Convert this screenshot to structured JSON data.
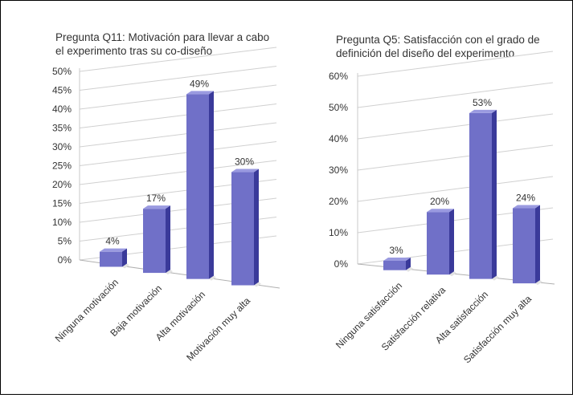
{
  "chart_data": [
    {
      "type": "bar",
      "title": "Pregunta Q11: Motivación para llevar a cabo el experimento tras su co-diseño",
      "title_lines": [
        "Pregunta Q11: Motivación para llevar a cabo",
        "el experimento tras su co-diseño"
      ],
      "categories": [
        "Ninguna motivación",
        "Baja motivación",
        "Alta motivación",
        "Motivación muy alta"
      ],
      "values": [
        4,
        17,
        49,
        30
      ],
      "value_labels": [
        "4%",
        "17%",
        "49%",
        "30%"
      ],
      "yticks": [
        "0%",
        "5%",
        "10%",
        "15%",
        "20%",
        "25%",
        "30%",
        "35%",
        "40%",
        "45%",
        "50%"
      ],
      "ylim": [
        0,
        50
      ],
      "xlabel": "",
      "ylabel": "",
      "grid": true,
      "style": "3d-column",
      "bar_color": "#7070c8"
    },
    {
      "type": "bar",
      "title": "Pregunta Q5: Satisfacción con el grado de definición del diseño del experimento",
      "title_lines": [
        "Pregunta Q5: Satisfacción con el grado de",
        "definición del diseño del experimento"
      ],
      "categories": [
        "Ninguna satisfacción",
        "Satisfacción relativa",
        "Alta satisfacción",
        "Satisfacción muy alta"
      ],
      "values": [
        3,
        20,
        53,
        24
      ],
      "value_labels": [
        "3%",
        "20%",
        "53%",
        "24%"
      ],
      "yticks": [
        "0%",
        "10%",
        "20%",
        "30%",
        "40%",
        "50%",
        "60%"
      ],
      "ylim": [
        0,
        60
      ],
      "xlabel": "",
      "ylabel": "",
      "grid": true,
      "style": "3d-column",
      "bar_color": "#7070c8"
    }
  ]
}
